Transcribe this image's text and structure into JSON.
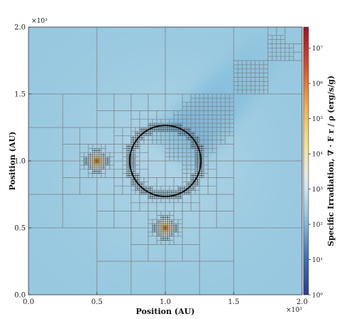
{
  "chart_data": {
    "type": "heatmap",
    "x_axis": {
      "label": "Position (AU)",
      "ticks": [
        0.0,
        0.5,
        1.0,
        1.5,
        2.0
      ],
      "tick_labels": [
        "0.0",
        "0.5",
        "1.0",
        "1.5",
        "2.0"
      ],
      "multiplier": "×10³",
      "range": [
        0,
        2000
      ]
    },
    "y_axis": {
      "label": "Position (AU)",
      "ticks": [
        0.0,
        0.5,
        1.0,
        1.5,
        2.0
      ],
      "tick_labels": [
        "0.0",
        "0.5",
        "1.0",
        "1.5",
        "2.0"
      ],
      "multiplier": "×10³",
      "range": [
        0,
        2000
      ]
    },
    "colorbar": {
      "label": "Specific Irradiation, ∇ · F r / ρ (erg/s/g)",
      "scale": "log",
      "range_exponent": [
        0,
        7.6
      ],
      "tick_exponents": [
        0,
        1,
        2,
        3,
        4,
        5,
        6,
        7
      ],
      "tick_labels": [
        "10⁰",
        "10¹",
        "10²",
        "10³",
        "10⁴",
        "10⁵",
        "10⁶",
        "10⁷"
      ],
      "colormap": [
        "#2c3d96",
        "#3f73b6",
        "#8cc3dd",
        "#e4ecf0",
        "#f2e48a",
        "#f3a94c",
        "#dd4b2a",
        "#a50f25"
      ]
    },
    "background_log_level": 2.3,
    "sources": [
      {
        "x": 500,
        "y": 1000,
        "peak_log": 7.4
      },
      {
        "x": 1000,
        "y": 500,
        "peak_log": 7.4
      }
    ],
    "ring": {
      "center_x": 1000,
      "center_y": 1000,
      "radius": 260
    },
    "shadow": {
      "from_x": 1000,
      "from_y": 1000,
      "to_x": 1850,
      "to_y": 1950,
      "min_log": 1.6
    },
    "grid": "adaptive mesh refinement"
  }
}
